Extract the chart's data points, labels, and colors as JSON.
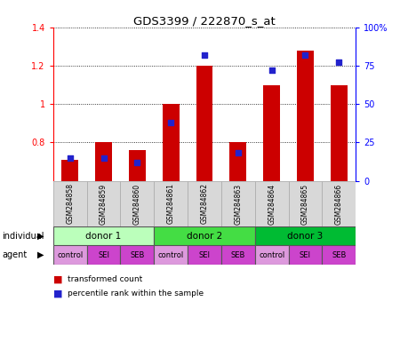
{
  "title": "GDS3399 / 222870_s_at",
  "samples": [
    "GSM284858",
    "GSM284859",
    "GSM284860",
    "GSM284861",
    "GSM284862",
    "GSM284863",
    "GSM284864",
    "GSM284865",
    "GSM284866"
  ],
  "transformed_count": [
    0.71,
    0.8,
    0.76,
    1.0,
    1.2,
    0.8,
    1.1,
    1.28,
    1.1
  ],
  "percentile_rank": [
    15,
    15,
    12,
    38,
    82,
    18,
    72,
    82,
    77
  ],
  "bar_bottom": 0.6,
  "ylim_left": [
    0.6,
    1.4
  ],
  "ylim_right": [
    0,
    100
  ],
  "yticks_left": [
    0.8,
    1.0,
    1.2,
    1.4
  ],
  "ytick_labels_left": [
    "0.8",
    "1",
    "1.2",
    "1.4"
  ],
  "yticks_right": [
    0,
    25,
    50,
    75,
    100
  ],
  "ytick_labels_right": [
    "0",
    "25",
    "50",
    "75",
    "100%"
  ],
  "bar_color": "#cc0000",
  "dot_color": "#2222cc",
  "individual_colors": [
    "#bbffbb",
    "#44dd44",
    "#00bb33"
  ],
  "agent_light_color": "#dd99dd",
  "agent_dark_color": "#cc44cc",
  "legend_bar_label": "transformed count",
  "legend_dot_label": "percentile rank within the sample"
}
